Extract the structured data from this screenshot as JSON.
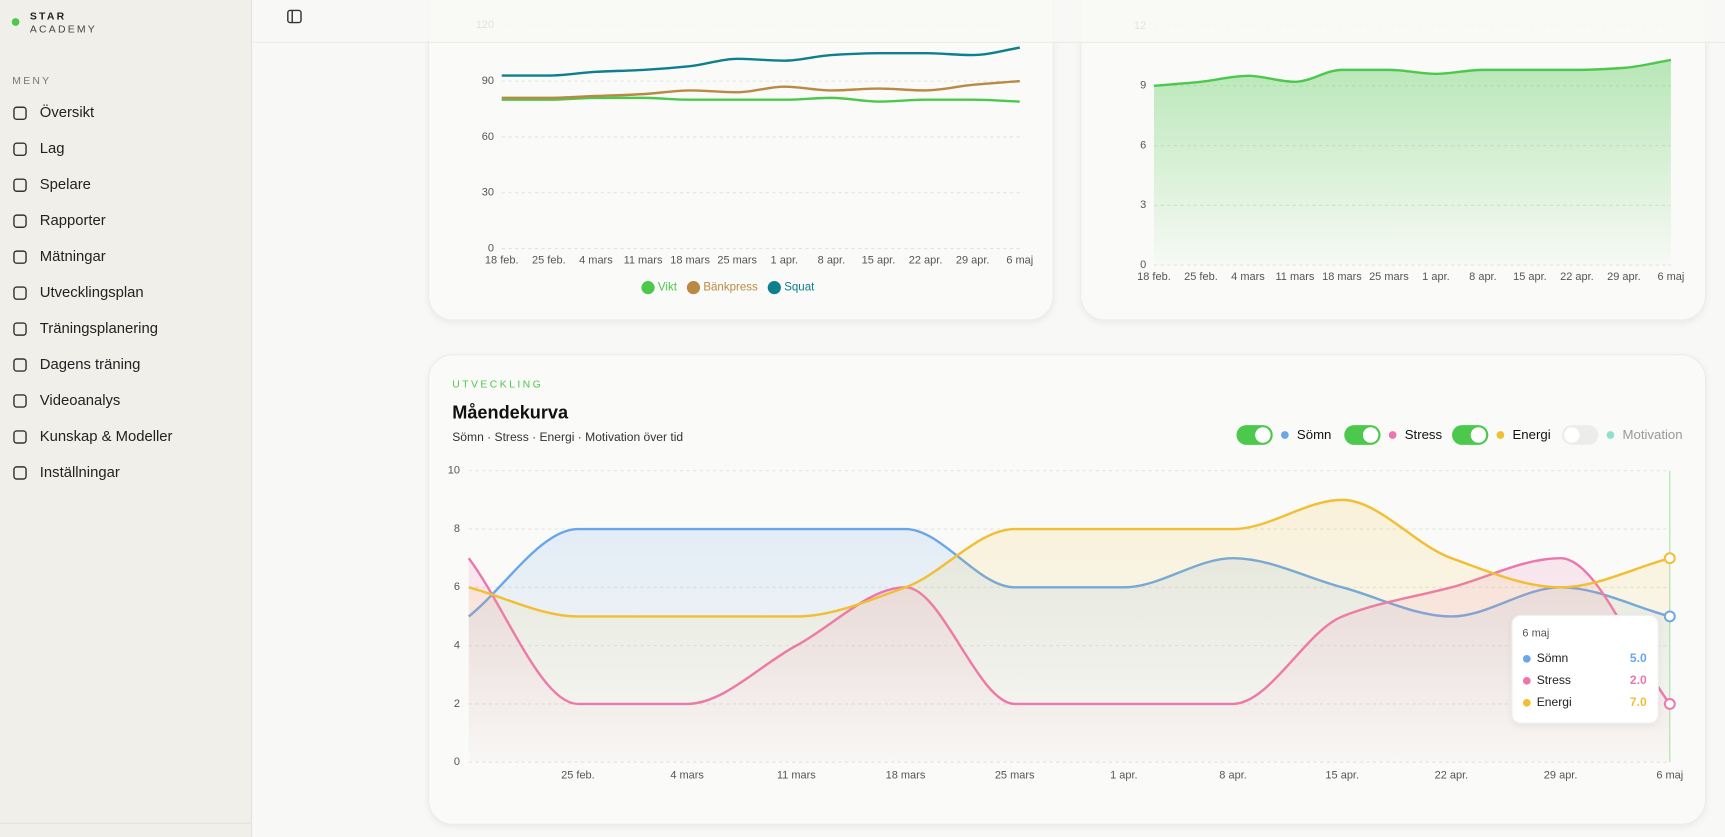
{
  "sidebar": {
    "brand": [
      "STAR",
      "ACADEMY"
    ],
    "menu_title": "MENY",
    "items": [
      "Översikt",
      "Lag",
      "Spelare",
      "Rapporter",
      "Mätningar",
      "Utvecklingsplan",
      "Träningsplanering",
      "Dagens träning",
      "Videoanalys",
      "Kunskap & Modeller",
      "Inställningar"
    ]
  },
  "chart_data": [
    {
      "type": "line",
      "legend": "bottom",
      "grid": true,
      "categories": [
        "18 feb.",
        "25 feb.",
        "4 mars",
        "11 mars",
        "18 mars",
        "25 mars",
        "1 apr.",
        "8 apr.",
        "15 apr.",
        "22 apr.",
        "29 apr.",
        "6 maj"
      ],
      "series": [
        {
          "name": "Vikt",
          "color": "#4cc94c",
          "values": [
            80,
            80,
            81,
            81,
            80,
            80,
            80,
            81,
            79,
            80,
            80,
            79
          ]
        },
        {
          "name": "Bänkpress",
          "color": "#b88a44",
          "values": [
            81,
            81,
            82,
            83,
            85,
            84,
            87,
            85,
            86,
            85,
            88,
            90
          ]
        },
        {
          "name": "Squat",
          "color": "#0e7f8c",
          "values": [
            93,
            93,
            95,
            96,
            98,
            102,
            101,
            104,
            105,
            105,
            104,
            108
          ]
        }
      ],
      "ylim": [
        0,
        120
      ],
      "yticks": [
        0,
        30,
        60,
        90,
        120
      ]
    },
    {
      "type": "area",
      "grid": true,
      "categories": [
        "18 feb.",
        "25 feb.",
        "4 mars",
        "11 mars",
        "18 mars",
        "25 mars",
        "1 apr.",
        "8 apr.",
        "15 apr.",
        "22 apr.",
        "29 apr.",
        "6 maj"
      ],
      "series": [
        {
          "color": "#4cc94c",
          "values": [
            9.0,
            9.2,
            9.5,
            9.2,
            9.8,
            9.8,
            9.6,
            9.8,
            9.8,
            9.8,
            9.9,
            10.3
          ]
        }
      ],
      "ylim": [
        0,
        12
      ],
      "yticks": [
        0,
        3,
        6,
        9,
        12
      ]
    },
    {
      "type": "area",
      "grid": true,
      "eyebrow": "UTVECKLING",
      "title": "Måendekurva",
      "subtitle": "Sömn · Stress · Energi · Motivation över tid",
      "categories": [
        null,
        "25 feb.",
        "4 mars",
        "11 mars",
        "18 mars",
        "25 mars",
        "1 apr.",
        "8 apr.",
        "15 apr.",
        "22 apr.",
        "29 apr.",
        "6 maj"
      ],
      "series": [
        {
          "name": "Sömn",
          "color": "#6aa6e8",
          "visible": true,
          "values": [
            5,
            8,
            8,
            8,
            8,
            6,
            6,
            7,
            6,
            5,
            6,
            5
          ]
        },
        {
          "name": "Stress",
          "color": "#ec76b0",
          "visible": true,
          "values": [
            7,
            2,
            2,
            4,
            6,
            2,
            2,
            2,
            5,
            6,
            7,
            2
          ]
        },
        {
          "name": "Energi",
          "color": "#f2be33",
          "visible": true,
          "values": [
            6,
            5,
            5,
            5,
            6,
            8,
            8,
            8,
            9,
            7,
            6,
            7
          ]
        },
        {
          "name": "Motivation",
          "color": "#8ee0cf",
          "visible": false,
          "values": [
            null,
            null,
            null,
            null,
            null,
            null,
            null,
            null,
            null,
            null,
            null,
            null
          ]
        }
      ],
      "ylim": [
        0,
        10
      ],
      "yticks": [
        0,
        2,
        4,
        6,
        8,
        10
      ],
      "tooltip": {
        "title": "6 maj",
        "rows": [
          {
            "name": "Sömn",
            "value_label": "5.0"
          },
          {
            "name": "Stress",
            "value_label": "2.0"
          },
          {
            "name": "Energi",
            "value_label": "7.0"
          }
        ]
      }
    }
  ]
}
